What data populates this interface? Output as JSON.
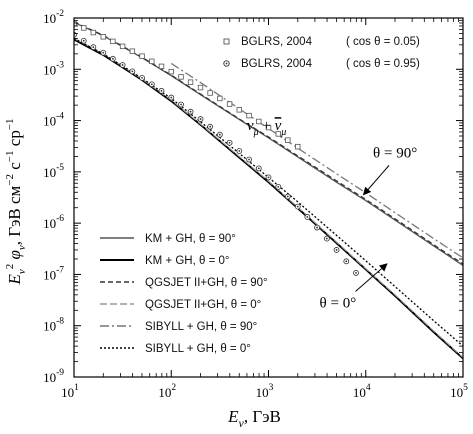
{
  "chart_data": {
    "type": "line",
    "x_scale": "log",
    "y_scale": "log",
    "xlim": [
      10,
      100000
    ],
    "ylim": [
      1e-09,
      0.01
    ],
    "grid": false,
    "legend_position": "bottom-left",
    "xlabel": {
      "main": "E",
      "sub": "ν",
      "rest": ", ГэВ"
    },
    "ylabel": {
      "parts": [
        {
          "t": "E",
          "style": "italic"
        },
        {
          "t": "ν",
          "shift": "sub",
          "style": "italic"
        },
        {
          "t": "2",
          "shift": "super"
        },
        {
          "t": " φ",
          "style": "italic"
        },
        {
          "t": "ν",
          "shift": "sub",
          "style": "italic"
        },
        {
          "t": ", ГэВ см"
        },
        {
          "t": "−2",
          "shift": "super"
        },
        {
          "t": " с"
        },
        {
          "t": "−1",
          "shift": "super"
        },
        {
          "t": " ср"
        },
        {
          "t": "−1",
          "shift": "super"
        }
      ]
    },
    "x_ticks": [
      {
        "value": 10,
        "label": "10",
        "exp": "1"
      },
      {
        "value": 100,
        "label": "10",
        "exp": "2"
      },
      {
        "value": 1000,
        "label": "10",
        "exp": "3"
      },
      {
        "value": 10000,
        "label": "10",
        "exp": "4"
      },
      {
        "value": 100000,
        "label": "10",
        "exp": "5"
      }
    ],
    "y_ticks": [
      {
        "value": 1e-09,
        "label": "10",
        "exp": "-9"
      },
      {
        "value": 1e-08,
        "label": "10",
        "exp": "-8"
      },
      {
        "value": 1e-07,
        "label": "10",
        "exp": "-7"
      },
      {
        "value": 1e-06,
        "label": "10",
        "exp": "-6"
      },
      {
        "value": 1e-05,
        "label": "10",
        "exp": "-5"
      },
      {
        "value": 0.0001,
        "label": "10",
        "exp": "-4"
      },
      {
        "value": 0.001,
        "label": "10",
        "exp": "-3"
      },
      {
        "value": 0.01,
        "label": "10",
        "exp": "-2"
      }
    ],
    "series": [
      {
        "name": "KM + GH,  θ = 90°",
        "color": "#555555",
        "dash": "",
        "width": 1.3,
        "x": [
          10,
          20,
          50,
          100,
          200,
          500,
          1000,
          2000,
          5000,
          10000,
          20000,
          50000,
          100000
        ],
        "y": [
          0.0082,
          0.0045,
          0.00168,
          0.00075,
          0.00032,
          0.000105,
          4.6e-05,
          1.95e-05,
          6.3e-06,
          2.75e-06,
          1.15e-06,
          3.6e-07,
          1.5e-07
        ]
      },
      {
        "name": "KM + GH,  θ = 0°",
        "color": "#000000",
        "dash": "",
        "width": 1.9,
        "x": [
          10,
          20,
          50,
          100,
          200,
          500,
          1000,
          2000,
          5000,
          10000,
          20000,
          50000,
          100000
        ],
        "y": [
          0.0038,
          0.0019,
          0.00062,
          0.00024,
          8.3e-05,
          1.9e-05,
          6.3e-06,
          1.95e-06,
          4.1e-07,
          1.25e-07,
          3.8e-08,
          7.5e-09,
          2.3e-09
        ]
      },
      {
        "name": "QGSJET II+GH,  θ = 90°",
        "color": "#333333",
        "dash": "5,3",
        "width": 1.2,
        "x": [
          10,
          20,
          50,
          100,
          200,
          500,
          1000,
          2000,
          5000,
          10000,
          20000,
          50000,
          100000
        ],
        "y": [
          0.0084,
          0.0046,
          0.00172,
          0.00077,
          0.00033,
          0.000108,
          4.8e-05,
          2.05e-05,
          6.7e-06,
          2.9e-06,
          1.22e-06,
          3.8e-07,
          1.6e-07
        ]
      },
      {
        "name": "QGSJET II+GH,  θ = 0°",
        "color": "#9a9a9a",
        "dash": "7,3",
        "width": 1.2,
        "x": [
          10,
          20,
          50,
          100,
          200,
          500,
          1000,
          2000,
          5000,
          10000,
          20000,
          50000,
          100000
        ],
        "y": [
          0.004,
          0.002,
          0.00065,
          0.00025,
          8.6e-05,
          2e-05,
          6.6e-06,
          2.05e-06,
          4.3e-07,
          1.3e-07,
          4e-08,
          7.9e-09,
          2.4e-09
        ]
      },
      {
        "name": "SIBYLL + GH,  θ = 90°",
        "color": "#777777",
        "dash": "9,3,2,3",
        "width": 1.3,
        "x": [
          100,
          200,
          500,
          1000,
          2000,
          5000,
          10000,
          20000,
          50000,
          100000
        ],
        "y": [
          0.0013,
          0.00055,
          0.00017,
          7e-05,
          2.9e-05,
          9.2e-06,
          3.9e-06,
          1.6e-06,
          5e-07,
          2.1e-07
        ]
      },
      {
        "name": "SIBYLL + GH,  θ = 0°",
        "color": "#000000",
        "dash": "2,2",
        "width": 1.3,
        "x": [
          10,
          20,
          50,
          100,
          200,
          500,
          1000,
          2000,
          5000,
          10000,
          20000,
          50000,
          100000
        ],
        "y": [
          0.004,
          0.002,
          0.00067,
          0.00027,
          9.5e-05,
          2.3e-05,
          7.8e-06,
          2.6e-06,
          5.8e-07,
          1.85e-07,
          5.8e-08,
          1.25e-08,
          4e-09
        ]
      }
    ],
    "points": [
      {
        "name": "BGLRS, 2004",
        "condition": "( cos θ = 0.05)",
        "marker": "square",
        "x": [
          10,
          12.6,
          15.8,
          20,
          25.1,
          31.6,
          39.8,
          50.1,
          63.1,
          79.4,
          100,
          126,
          158,
          200,
          251,
          316,
          398,
          501,
          631,
          794,
          1000,
          1260,
          1580,
          2000
        ],
        "y": [
          0.0077,
          0.0064,
          0.0052,
          0.0043,
          0.0035,
          0.0028,
          0.00225,
          0.0018,
          0.00143,
          0.00114,
          0.0009,
          0.00071,
          0.00056,
          0.00044,
          0.000345,
          0.00027,
          0.00021,
          0.000162,
          0.000125,
          9.6e-05,
          7.3e-05,
          5.5e-05,
          4.15e-05,
          3.1e-05
        ]
      },
      {
        "name": "BGLRS, 2004",
        "condition": "( cos θ = 0.95)",
        "marker": "circle",
        "x": [
          10,
          12.6,
          15.8,
          20,
          25.1,
          31.6,
          39.8,
          50.1,
          63.1,
          79.4,
          100,
          126,
          158,
          200,
          251,
          316,
          398,
          501,
          631,
          794,
          1000,
          1260,
          1580,
          2000,
          2510,
          3160,
          3980,
          5010,
          6310,
          7940
        ],
        "y": [
          0.0047,
          0.0036,
          0.0027,
          0.0021,
          0.0016,
          0.00121,
          0.00091,
          0.00068,
          0.00051,
          0.00038,
          0.000281,
          0.000206,
          0.000149,
          0.000107,
          7.6e-05,
          5.3e-05,
          3.7e-05,
          2.55e-05,
          1.74e-05,
          1.17e-05,
          7.8e-06,
          5.1e-06,
          3.3e-06,
          2.1e-06,
          1.32e-06,
          8.2e-07,
          5e-07,
          3e-07,
          1.8e-07,
          1.07e-07
        ]
      }
    ],
    "annotations": [
      {
        "name": "angle-90-annotation",
        "text": "θ = 90°",
        "x": 22000,
        "y": 1.6e-05,
        "arrow_to": [
          9500,
          3.6e-06
        ]
      },
      {
        "name": "angle-0-annotation",
        "text": "θ = 0°",
        "x": 6200,
        "y": 1.9e-08,
        "arrow_to": [
          16500,
          1.6e-07
        ]
      }
    ],
    "channel_label": {
      "main": "ν",
      "sub": "μ",
      "plus": " + ",
      "bar_sub": "μ",
      "x": 600,
      "y": 6.5e-05
    }
  }
}
